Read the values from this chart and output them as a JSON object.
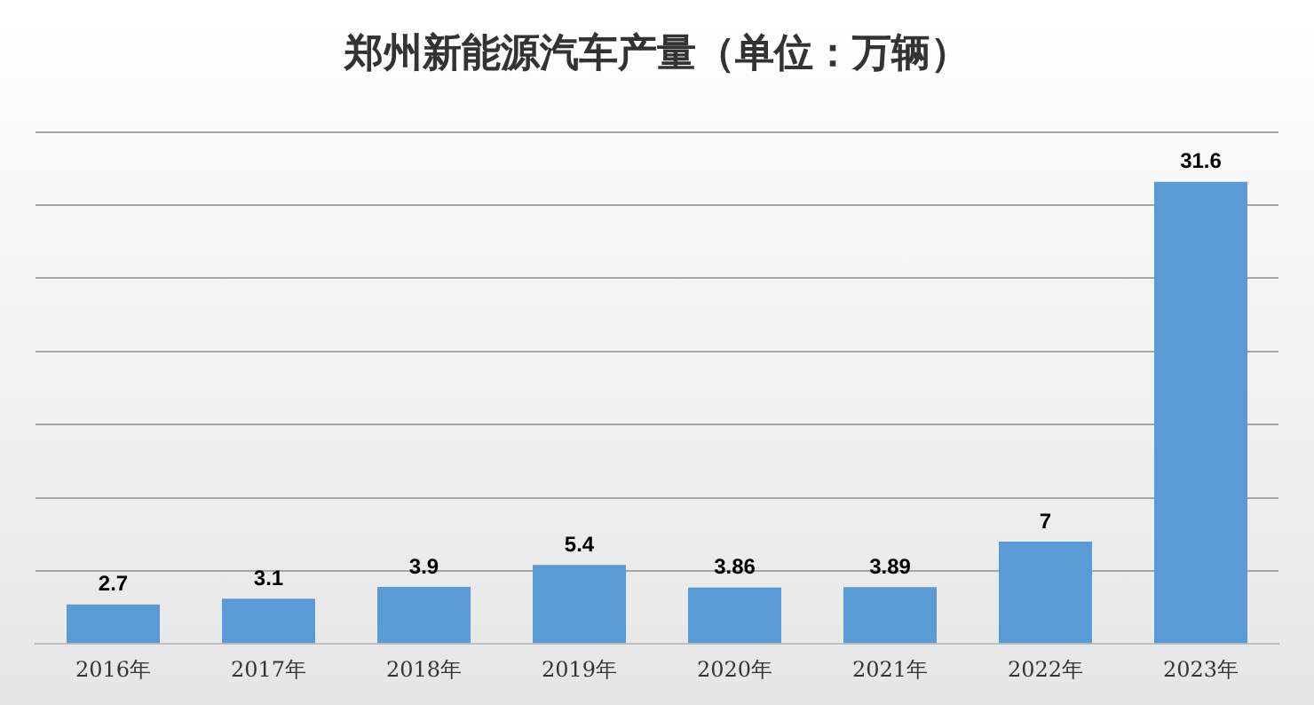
{
  "chart_data": {
    "type": "bar",
    "title": "郑州新能源汽车产量（单位：万辆）",
    "categories": [
      "2016年",
      "2017年",
      "2018年",
      "2019年",
      "2020年",
      "2021年",
      "2022年",
      "2023年"
    ],
    "values": [
      2.7,
      3.1,
      3.9,
      5.4,
      3.86,
      3.89,
      7,
      31.6
    ],
    "color": "#5b9bd5",
    "ylim": [
      0,
      35
    ],
    "yticks": [
      {
        "value": 0,
        "label": null
      },
      {
        "value": 5,
        "label": null
      },
      {
        "value": 10,
        "label": null
      },
      {
        "value": 15,
        "label": null
      },
      {
        "value": 20,
        "label": null
      },
      {
        "value": 25,
        "label": null
      },
      {
        "value": 30,
        "label": null
      },
      {
        "value": 35,
        "label": null
      }
    ],
    "tick_labels": "x",
    "grid": "y",
    "data_labels": true,
    "legend": false
  }
}
